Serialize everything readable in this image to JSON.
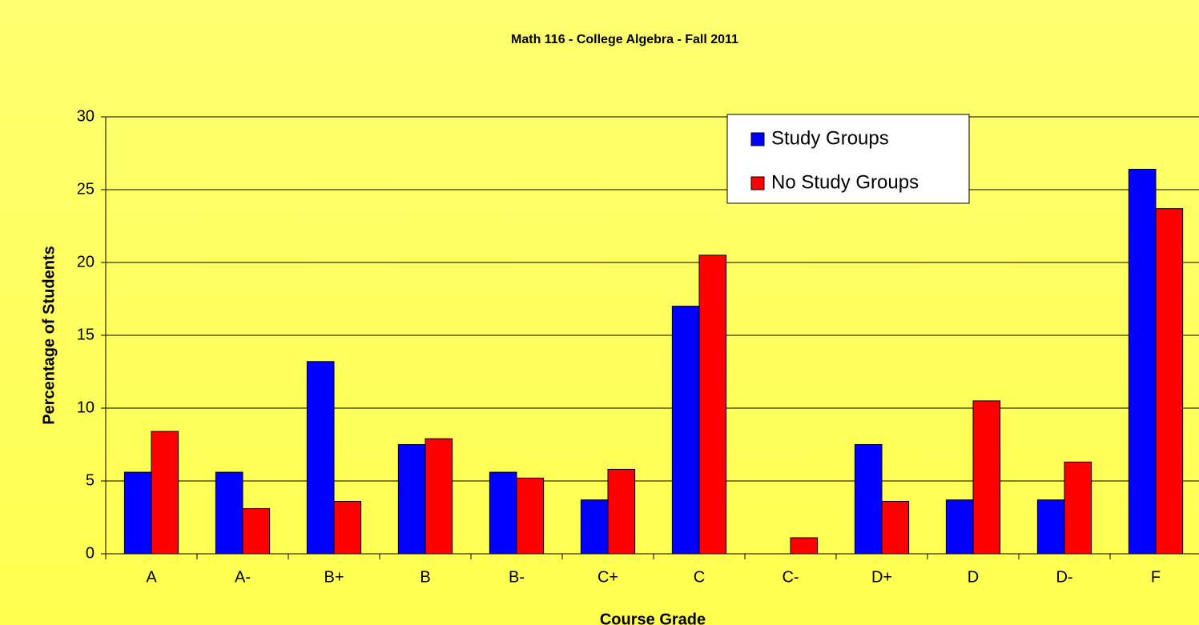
{
  "chart_data": {
    "type": "bar",
    "title": "Math 116 - College Algebra - Fall 2011",
    "x_label": "Course Grade",
    "y_label": "Percentage of Students",
    "categories": [
      "A",
      "A-",
      "B+",
      "B",
      "B-",
      "C+",
      "C",
      "C-",
      "D+",
      "D",
      "D-",
      "F"
    ],
    "series": [
      {
        "name": "Study Groups",
        "color": "#0000ff",
        "values": [
          5.6,
          5.6,
          13.2,
          7.5,
          5.6,
          3.7,
          17.0,
          0,
          7.5,
          3.7,
          3.7,
          26.4
        ]
      },
      {
        "name": "No Study Groups",
        "color": "#ff0000",
        "values": [
          8.4,
          3.1,
          3.6,
          7.9,
          5.2,
          5.8,
          20.5,
          1.1,
          3.6,
          10.5,
          6.3,
          23.7
        ]
      }
    ],
    "ylim": [
      0,
      30
    ],
    "yticks": [
      0,
      5,
      10,
      15,
      20,
      25,
      30
    ],
    "grid": true,
    "legend": "upper right"
  }
}
